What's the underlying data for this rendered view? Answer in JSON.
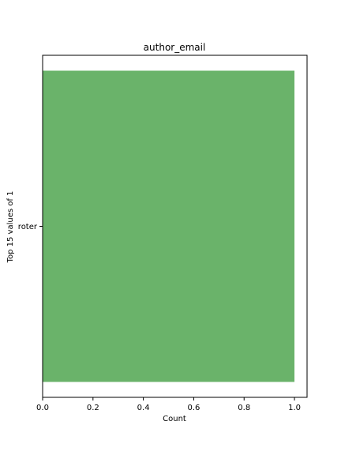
{
  "chart_data": {
    "type": "bar",
    "orientation": "horizontal",
    "title": "author_email",
    "xlabel": "Count",
    "ylabel": "Top 15 values of 1",
    "categories": [
      "roter"
    ],
    "values": [
      1
    ],
    "xlim": [
      0,
      1.05
    ],
    "xticks": [
      0.0,
      0.2,
      0.4,
      0.6,
      0.8,
      1.0
    ],
    "xtick_labels": [
      "0.0",
      "0.2",
      "0.4",
      "0.6",
      "0.8",
      "1.0"
    ],
    "grid": false,
    "bar_color": "#6ab36a"
  }
}
